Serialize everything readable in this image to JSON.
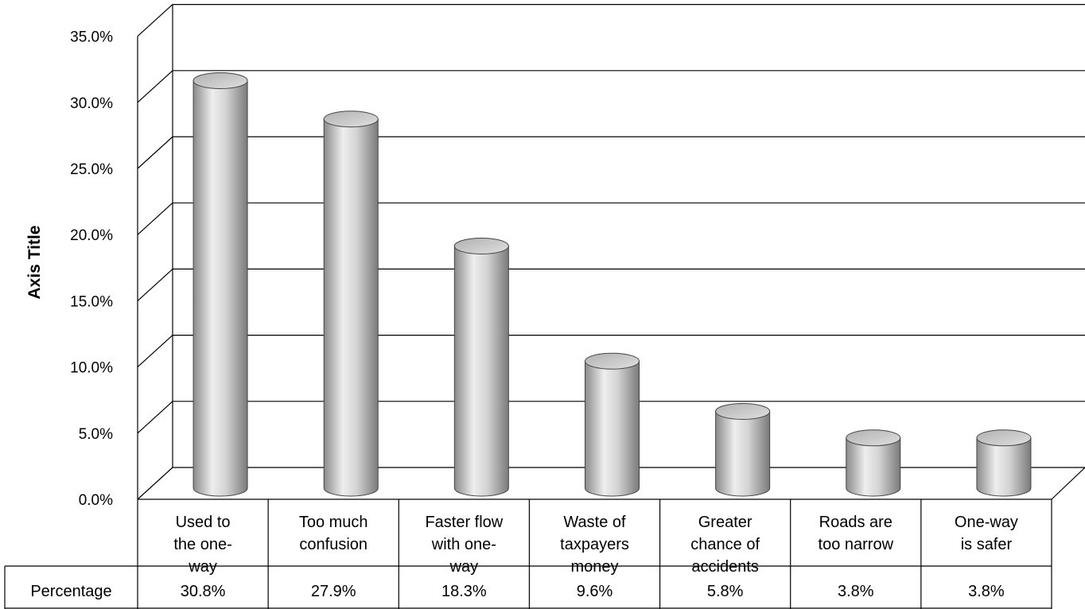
{
  "chart_data": {
    "type": "bar",
    "style": "3d-cylinder",
    "ylabel": "Axis Title",
    "ylim": [
      0,
      35
    ],
    "y_ticks": [
      "0.0%",
      "5.0%",
      "10.0%",
      "15.0%",
      "20.0%",
      "25.0%",
      "30.0%",
      "35.0%"
    ],
    "categories": [
      [
        "Used to",
        "the one-",
        "way"
      ],
      [
        "Too much",
        "confusion"
      ],
      [
        "Faster flow",
        "with one-",
        "way"
      ],
      [
        "Waste of",
        "taxpayers",
        "money"
      ],
      [
        "Greater",
        "chance of",
        "accidents"
      ],
      [
        "Roads are",
        "too narrow"
      ],
      [
        "One-way",
        "is safer"
      ]
    ],
    "series": [
      {
        "name": "Percentage",
        "values": [
          30.8,
          27.9,
          18.3,
          9.6,
          5.8,
          3.8,
          3.8
        ],
        "labels": [
          "30.8%",
          "27.9%",
          "18.3%",
          "9.6%",
          "5.8%",
          "3.8%",
          "3.8%"
        ]
      }
    ],
    "grid": true,
    "data_table": true,
    "colors": {
      "bar": "#c8c8c8",
      "bar_edge": "#555555",
      "grid": "#000000"
    }
  }
}
